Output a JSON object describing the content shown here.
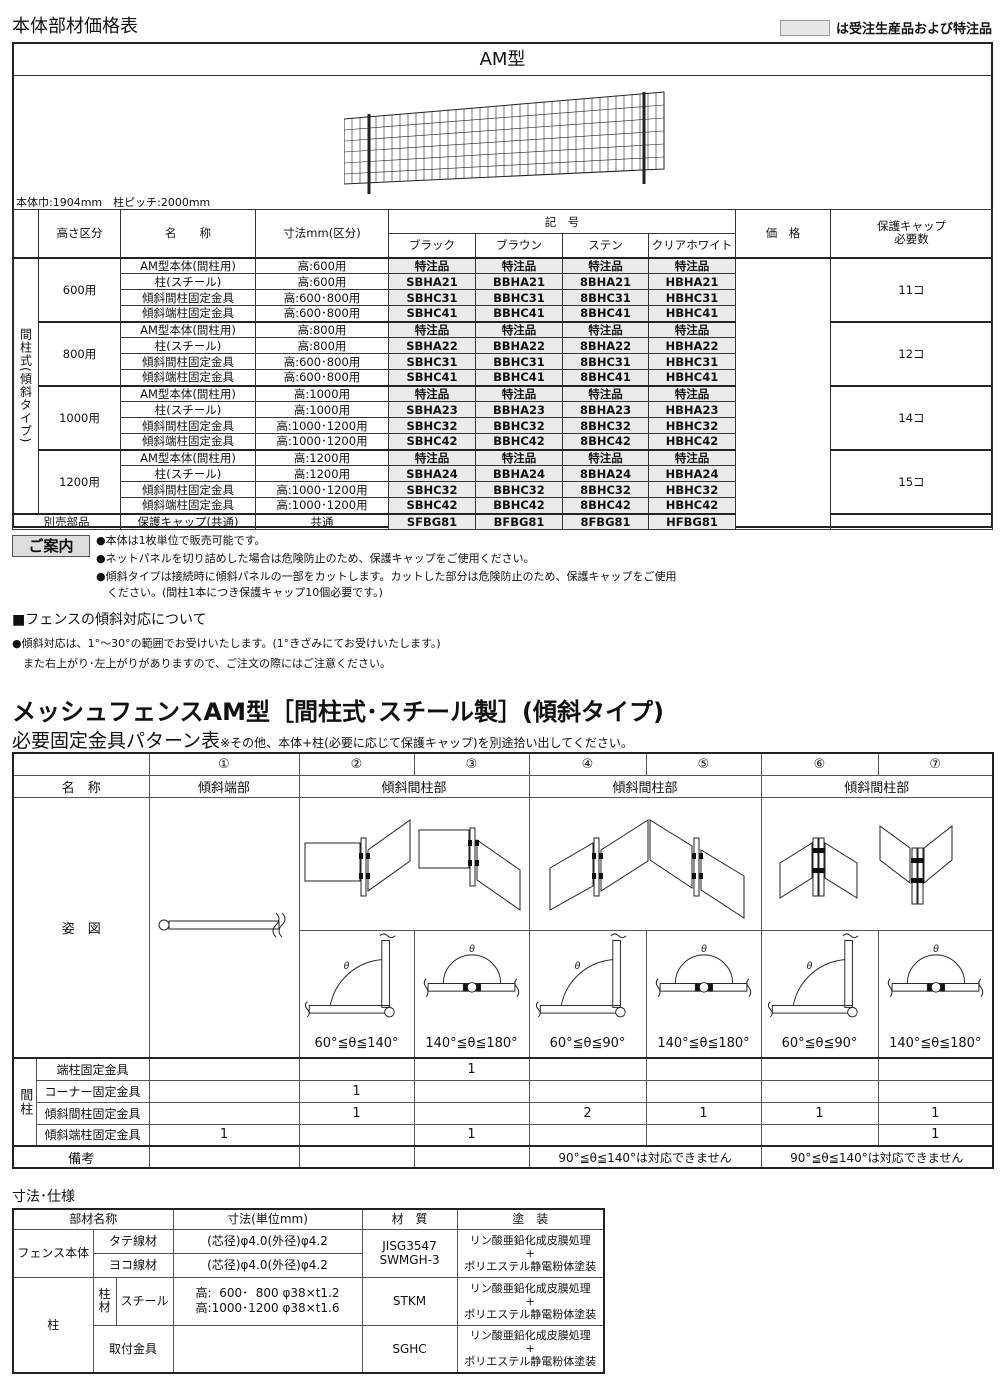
{
  "header": {
    "title": "本体部材価格表",
    "legend_text": "は受注生産品および特注品",
    "legend_color": "#e6e6e6"
  },
  "price_table": {
    "model": "AM型",
    "body_width_note": "本体巾:1904mm　柱ピッチ:2000mm",
    "headers": {
      "height_class": "高さ区分",
      "name": "名　　称",
      "dimension": "寸法mm(区分)",
      "code": "記　号",
      "colors": [
        "ブラック",
        "ブラウン",
        "ステン",
        "クリアホワイト"
      ],
      "price": "価　格",
      "cap": "保護キャップ\n必要数"
    },
    "side_label": "間柱式(傾斜タイプ)",
    "groups": [
      {
        "height": "600用",
        "cap": "11コ",
        "rows": [
          {
            "name": "AM型本体(間柱用)",
            "dim": "高:600用",
            "codes": [
              "特注品",
              "特注品",
              "特注品",
              "特注品"
            ]
          },
          {
            "name": "柱(スチール)",
            "dim": "高:600用",
            "codes": [
              "SBHA21",
              "BBHA21",
              "8BHA21",
              "HBHA21"
            ]
          },
          {
            "name": "傾斜間柱固定金具",
            "dim": "高:600･800用",
            "codes": [
              "SBHC31",
              "BBHC31",
              "8BHC31",
              "HBHC31"
            ]
          },
          {
            "name": "傾斜端柱固定金具",
            "dim": "高:600･800用",
            "codes": [
              "SBHC41",
              "BBHC41",
              "8BHC41",
              "HBHC41"
            ]
          }
        ]
      },
      {
        "height": "800用",
        "cap": "12コ",
        "rows": [
          {
            "name": "AM型本体(間柱用)",
            "dim": "高:800用",
            "codes": [
              "特注品",
              "特注品",
              "特注品",
              "特注品"
            ]
          },
          {
            "name": "柱(スチール)",
            "dim": "高:800用",
            "codes": [
              "SBHA22",
              "BBHA22",
              "8BHA22",
              "HBHA22"
            ]
          },
          {
            "name": "傾斜間柱固定金具",
            "dim": "高:600･800用",
            "codes": [
              "SBHC31",
              "BBHC31",
              "8BHC31",
              "HBHC31"
            ]
          },
          {
            "name": "傾斜端柱固定金具",
            "dim": "高:600･800用",
            "codes": [
              "SBHC41",
              "BBHC41",
              "8BHC41",
              "HBHC41"
            ]
          }
        ]
      },
      {
        "height": "1000用",
        "cap": "14コ",
        "rows": [
          {
            "name": "AM型本体(間柱用)",
            "dim": "高:1000用",
            "codes": [
              "特注品",
              "特注品",
              "特注品",
              "特注品"
            ]
          },
          {
            "name": "柱(スチール)",
            "dim": "高:1000用",
            "codes": [
              "SBHA23",
              "BBHA23",
              "8BHA23",
              "HBHA23"
            ]
          },
          {
            "name": "傾斜間柱固定金具",
            "dim": "高:1000･1200用",
            "codes": [
              "SBHC32",
              "BBHC32",
              "8BHC32",
              "HBHC32"
            ]
          },
          {
            "name": "傾斜端柱固定金具",
            "dim": "高:1000･1200用",
            "codes": [
              "SBHC42",
              "BBHC42",
              "8BHC42",
              "HBHC42"
            ]
          }
        ]
      },
      {
        "height": "1200用",
        "cap": "15コ",
        "rows": [
          {
            "name": "AM型本体(間柱用)",
            "dim": "高:1200用",
            "codes": [
              "特注品",
              "特注品",
              "特注品",
              "特注品"
            ]
          },
          {
            "name": "柱(スチール)",
            "dim": "高:1200用",
            "codes": [
              "SBHA24",
              "BBHA24",
              "8BHA24",
              "HBHA24"
            ]
          },
          {
            "name": "傾斜間柱固定金具",
            "dim": "高:1000･1200用",
            "codes": [
              "SBHC32",
              "BBHC32",
              "8BHC32",
              "HBHC32"
            ]
          },
          {
            "name": "傾斜端柱固定金具",
            "dim": "高:1000･1200用",
            "codes": [
              "SBHC42",
              "BBHC42",
              "8BHC42",
              "HBHC42"
            ]
          }
        ]
      }
    ],
    "extra": {
      "label": "別売部品",
      "name": "保護キャップ(共通)",
      "dim": "共通",
      "codes": [
        "SFBG81",
        "BFBG81",
        "8FBG81",
        "HFBG81"
      ]
    }
  },
  "guide": {
    "tag": "ご案内",
    "notes": [
      "●本体は1枚単位で販売可能です。",
      "●ネットパネルを切り詰めした場合は危険防止のため、保護キャップをご使用ください。",
      "●傾斜タイプは接続時に傾斜パネルの一部をカットします。カットした部分は危険防止のため、保護キャップをご使用",
      "　ください。(間柱1本につき保護キャップ10個必要です。)"
    ]
  },
  "slope": {
    "heading": "■フェンスの傾斜対応について",
    "notes": [
      "●傾斜対応は、1°～30°の範囲でお受けいたします。(1°きざみにてお受けいたします。)",
      "　また右上がり･左上がりがありますので、ご注文の際にはご注意ください。"
    ]
  },
  "pattern": {
    "title": "メッシュフェンスAM型［間柱式･スチール製］(傾斜タイプ)",
    "subtitle": "必要固定金具パターン表",
    "subtitle_note": "※その他、本体+柱(必要に応じて保護キャップ)を別途拾い出してください。",
    "numbers": [
      "①",
      "②",
      "③",
      "④",
      "⑤",
      "⑥",
      "⑦"
    ],
    "name_label": "名　称",
    "part_names": [
      "傾斜端部",
      "傾斜間柱部",
      "傾斜間柱部",
      "傾斜間柱部"
    ],
    "figure_label": "姿　図",
    "angles": [
      "60°≦θ≦140°",
      "140°≦θ≦180°",
      "60°≦θ≦90°",
      "140°≦θ≦180°",
      "60°≦θ≦90°",
      "140°≦θ≦180°"
    ],
    "side_label": "間柱",
    "rows": [
      {
        "label": "端柱固定金具",
        "values": [
          "",
          "",
          "1",
          "",
          "",
          "",
          ""
        ]
      },
      {
        "label": "コーナー固定金具",
        "values": [
          "",
          "1",
          "",
          "",
          "",
          "",
          ""
        ]
      },
      {
        "label": "傾斜間柱固定金具",
        "values": [
          "",
          "1",
          "",
          "2",
          "1",
          "1",
          "1"
        ]
      },
      {
        "label": "傾斜端柱固定金具",
        "values": [
          "1",
          "",
          "1",
          "",
          "",
          "",
          "1"
        ]
      }
    ],
    "remarks_label": "備考",
    "remarks": [
      "90°≦θ≦140°は対応できません",
      "90°≦θ≦140°は対応できません"
    ]
  },
  "spec": {
    "heading": "寸法･仕様",
    "headers": [
      "部材名称",
      "寸法(単位mm)",
      "材　質",
      "塗　装"
    ],
    "fence_body": "フェンス本体",
    "vertical_wire": "タテ線材",
    "horizontal_wire": "ヨコ線材",
    "wire_dim": "(芯径)φ4.0(外径)φ4.2",
    "wire_material": "JISG3547\nSWMGH-3",
    "post": "柱",
    "post_material_label": "柱材",
    "steel": "スチール",
    "post_dim": "高:  600･  800 φ38×t1.2\n高:1000･1200 φ38×t1.6",
    "post_material": "STKM",
    "fitting": "取付金具",
    "fitting_material": "SGHC",
    "coating": "リン酸亜鉛化成皮膜処理\n+\nポリエステル静電粉体塗装"
  }
}
